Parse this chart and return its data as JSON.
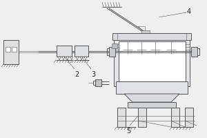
{
  "bg_color": "#efefef",
  "line_color": "#555555",
  "dark_color": "#333333",
  "lw": 0.7,
  "tlw": 0.4,
  "label_fontsize": 7,
  "label_color": "#222222",
  "figsize": [
    3.0,
    2.0
  ],
  "dpi": 100
}
